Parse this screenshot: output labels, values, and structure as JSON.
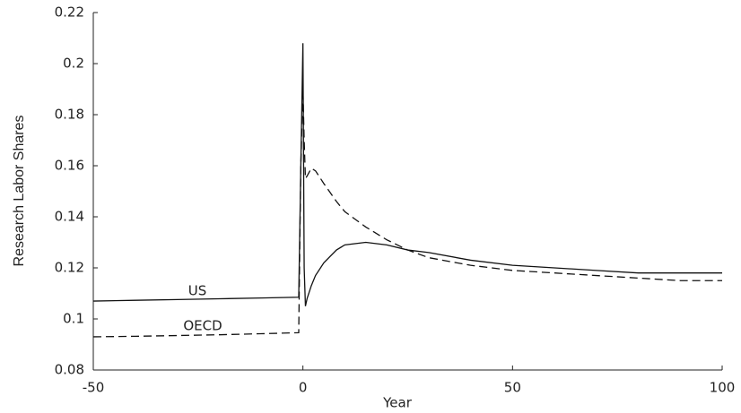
{
  "chart_data": {
    "type": "line",
    "xlabel": "Year",
    "ylabel": "Research Labor Shares",
    "annotations": [
      "US",
      "OECD"
    ],
    "x": [
      -50,
      -40,
      -30,
      -20,
      -10,
      -1,
      -0.5,
      0,
      0.3,
      0.6,
      1,
      2,
      3,
      5,
      8,
      10,
      15,
      20,
      25,
      30,
      40,
      50,
      60,
      70,
      80,
      90,
      100
    ],
    "series": [
      {
        "name": "US",
        "color": "#111111",
        "dash": false,
        "values": [
          0.107,
          0.1073,
          0.1076,
          0.1079,
          0.1082,
          0.1085,
          0.16,
          0.208,
          0.12,
          0.105,
          0.108,
          0.113,
          0.117,
          0.122,
          0.127,
          0.129,
          0.13,
          0.129,
          0.127,
          0.126,
          0.123,
          0.121,
          0.12,
          0.119,
          0.118,
          0.118,
          0.118
        ]
      },
      {
        "name": "OECD",
        "color": "#111111",
        "dash": true,
        "values": [
          0.093,
          0.0932,
          0.0935,
          0.0938,
          0.0942,
          0.0946,
          0.16,
          0.19,
          0.17,
          0.155,
          0.156,
          0.159,
          0.158,
          0.153,
          0.146,
          0.142,
          0.136,
          0.131,
          0.127,
          0.124,
          0.121,
          0.119,
          0.118,
          0.117,
          0.116,
          0.115,
          0.115
        ]
      }
    ],
    "xlim": [
      -50,
      100
    ],
    "xticks": [
      -50,
      0,
      50,
      100
    ],
    "ylim": [
      0.08,
      0.22
    ],
    "yticks": [
      0.08,
      0.1,
      0.12,
      0.14,
      0.16,
      0.18,
      0.2,
      0.22
    ],
    "grid": false
  }
}
